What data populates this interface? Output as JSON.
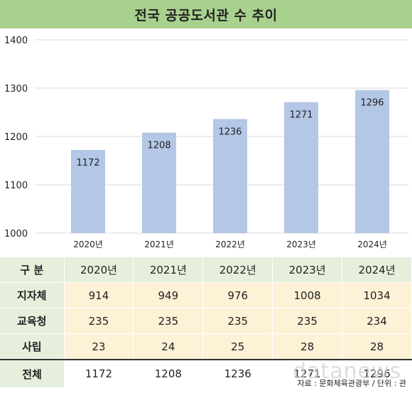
{
  "chart_data": {
    "type": "bar",
    "title": "전국 공공도서관 수 추이",
    "categories": [
      "2020년",
      "2021년",
      "2022년",
      "2023년",
      "2024년"
    ],
    "series": [
      {
        "values": [
          1172,
          1208,
          1236,
          1271,
          1296
        ]
      }
    ],
    "ylim": [
      1000,
      1400
    ],
    "yticks": [
      1000,
      1100,
      1200,
      1300,
      1400
    ],
    "grid": true,
    "bar_color": "#b4c7e7",
    "header_color": "#a9d18e"
  },
  "table": {
    "header": [
      "구 분",
      "2020년",
      "2021년",
      "2022년",
      "2023년",
      "2024년"
    ],
    "rows": [
      {
        "label": "지자체",
        "values": [
          "914",
          "949",
          "976",
          "1008",
          "1034"
        ]
      },
      {
        "label": "교육청",
        "values": [
          "235",
          "235",
          "235",
          "235",
          "234"
        ]
      },
      {
        "label": "사립",
        "values": [
          "23",
          "24",
          "25",
          "28",
          "28"
        ]
      }
    ],
    "total": {
      "label": "전체",
      "values": [
        "1172",
        "1208",
        "1236",
        "1271",
        "1296"
      ]
    }
  },
  "source": "자료 : 문화체육관광부 / 단위 : 관",
  "watermark": "datanews"
}
